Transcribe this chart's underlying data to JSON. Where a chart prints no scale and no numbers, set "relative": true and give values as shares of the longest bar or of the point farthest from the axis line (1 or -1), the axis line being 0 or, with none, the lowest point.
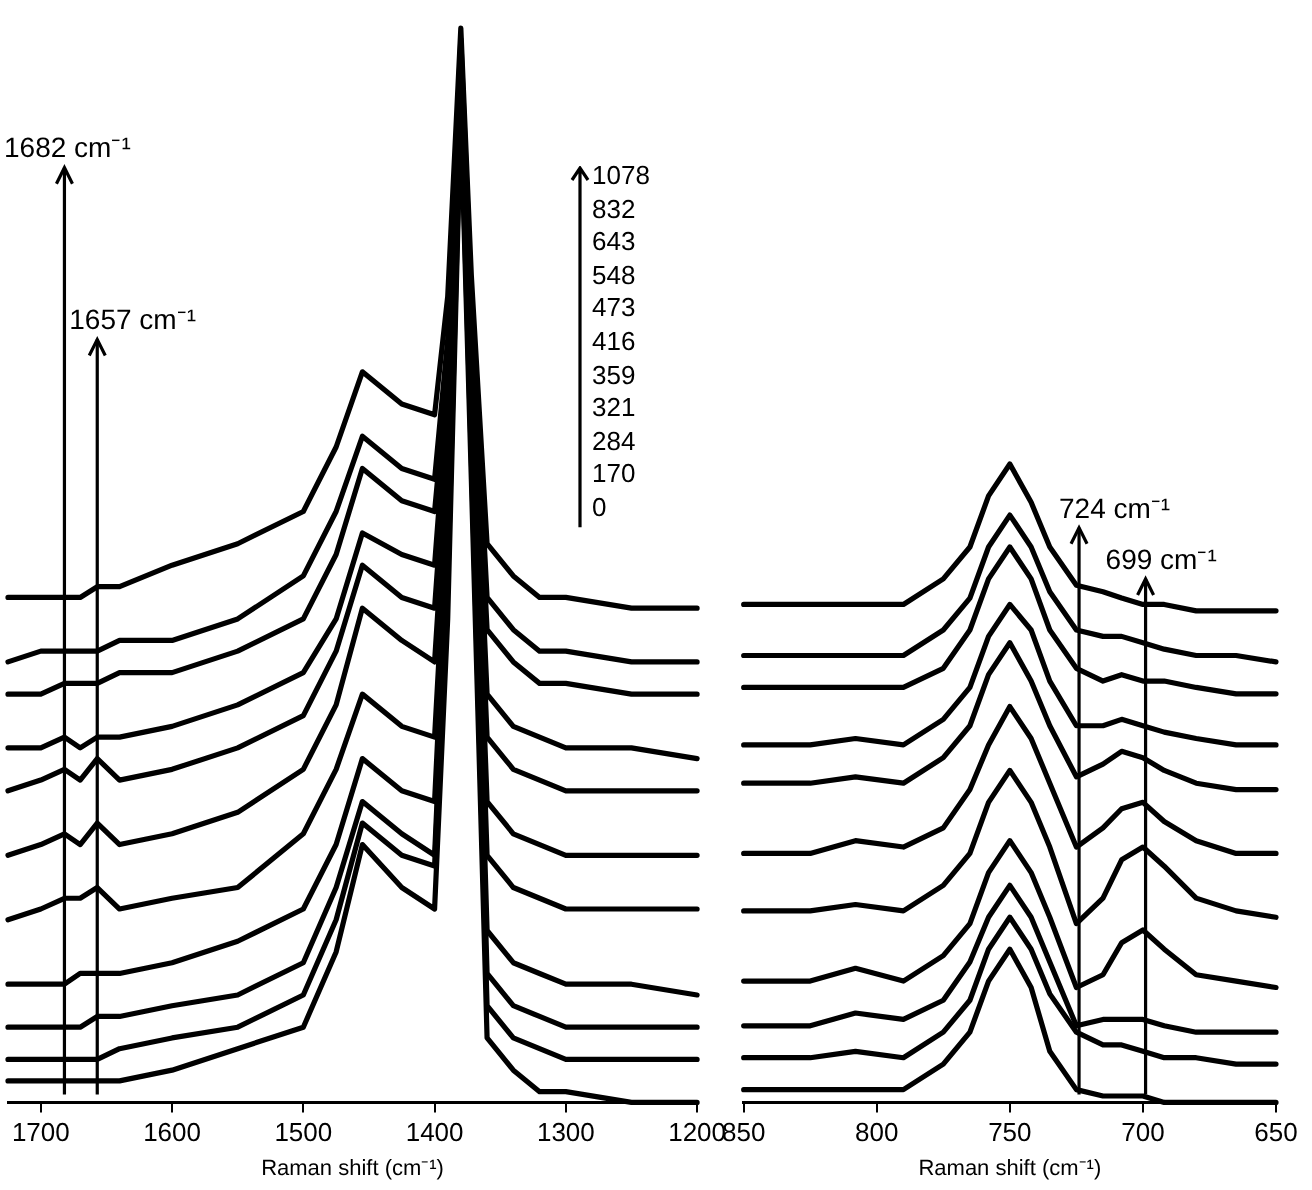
{
  "chart_data": [
    {
      "type": "line",
      "relative": true,
      "xlabel": "Raman shift (cm⁻¹)",
      "x": [
        1725,
        1700,
        1682,
        1670,
        1657,
        1640,
        1600,
        1550,
        1500,
        1475,
        1455,
        1425,
        1400,
        1390,
        1380,
        1372,
        1360,
        1340,
        1320,
        1300,
        1250,
        1200
      ],
      "xlim": [
        1725,
        1200
      ],
      "xticks": [
        1700,
        1600,
        1500,
        1400,
        1300,
        1200
      ],
      "ref_lines": [
        {
          "axis": "x",
          "value": 1682,
          "label": "1682 cm⁻¹"
        },
        {
          "axis": "x",
          "value": 1657,
          "label": "1657 cm⁻¹"
        }
      ],
      "annotations": [
        "1078",
        "832",
        "643",
        "548",
        "473",
        "416",
        "359",
        "321",
        "284",
        "170",
        "0"
      ],
      "series": [
        {
          "color": "#000000",
          "values": [
            0.47,
            0.47,
            0.47,
            0.47,
            0.48,
            0.48,
            0.5,
            0.52,
            0.55,
            0.61,
            0.68,
            0.65,
            0.64,
            0.75,
            1.0,
            0.77,
            0.52,
            0.49,
            0.47,
            0.47,
            0.46,
            0.46
          ]
        },
        {
          "color": "#000000",
          "values": [
            0.41,
            0.42,
            0.42,
            0.42,
            0.42,
            0.43,
            0.43,
            0.45,
            0.49,
            0.55,
            0.62,
            0.59,
            0.58,
            0.71,
            0.99,
            0.75,
            0.47,
            0.44,
            0.42,
            0.42,
            0.41,
            0.41
          ]
        },
        {
          "color": "#000000",
          "values": [
            0.38,
            0.38,
            0.39,
            0.39,
            0.39,
            0.4,
            0.4,
            0.42,
            0.45,
            0.51,
            0.59,
            0.56,
            0.55,
            0.68,
            0.98,
            0.73,
            0.44,
            0.41,
            0.39,
            0.39,
            0.38,
            0.38
          ]
        },
        {
          "color": "#000000",
          "values": [
            0.33,
            0.33,
            0.34,
            0.33,
            0.34,
            0.34,
            0.35,
            0.37,
            0.4,
            0.45,
            0.53,
            0.51,
            0.5,
            0.66,
            0.98,
            0.71,
            0.38,
            0.35,
            0.34,
            0.33,
            0.33,
            0.32
          ]
        },
        {
          "color": "#000000",
          "values": [
            0.29,
            0.3,
            0.31,
            0.3,
            0.32,
            0.3,
            0.31,
            0.33,
            0.36,
            0.42,
            0.5,
            0.47,
            0.46,
            0.63,
            0.97,
            0.69,
            0.34,
            0.31,
            0.3,
            0.29,
            0.29,
            0.29
          ]
        },
        {
          "color": "#000000",
          "values": [
            0.23,
            0.24,
            0.25,
            0.24,
            0.26,
            0.24,
            0.25,
            0.27,
            0.31,
            0.37,
            0.46,
            0.43,
            0.41,
            0.6,
            0.96,
            0.67,
            0.28,
            0.25,
            0.24,
            0.23,
            0.23,
            0.23
          ]
        },
        {
          "color": "#000000",
          "values": [
            0.17,
            0.18,
            0.19,
            0.19,
            0.2,
            0.18,
            0.19,
            0.2,
            0.25,
            0.31,
            0.38,
            0.35,
            0.34,
            0.56,
            0.95,
            0.66,
            0.23,
            0.2,
            0.19,
            0.18,
            0.18,
            0.18
          ]
        },
        {
          "color": "#000000",
          "values": [
            0.11,
            0.11,
            0.11,
            0.12,
            0.12,
            0.12,
            0.13,
            0.15,
            0.18,
            0.24,
            0.32,
            0.29,
            0.28,
            0.53,
            0.95,
            0.64,
            0.16,
            0.13,
            0.12,
            0.11,
            0.11,
            0.1
          ]
        },
        {
          "color": "#000000",
          "values": [
            0.07,
            0.07,
            0.07,
            0.07,
            0.08,
            0.08,
            0.09,
            0.1,
            0.13,
            0.2,
            0.28,
            0.25,
            0.23,
            0.5,
            0.94,
            0.62,
            0.12,
            0.09,
            0.08,
            0.07,
            0.07,
            0.07
          ]
        },
        {
          "color": "#000000",
          "values": [
            0.04,
            0.04,
            0.04,
            0.04,
            0.04,
            0.05,
            0.06,
            0.07,
            0.1,
            0.17,
            0.26,
            0.23,
            0.22,
            0.48,
            0.93,
            0.6,
            0.09,
            0.06,
            0.05,
            0.04,
            0.04,
            0.04
          ]
        },
        {
          "color": "#000000",
          "values": [
            0.02,
            0.02,
            0.02,
            0.02,
            0.02,
            0.02,
            0.03,
            0.05,
            0.07,
            0.14,
            0.24,
            0.2,
            0.18,
            0.45,
            0.92,
            0.58,
            0.06,
            0.03,
            0.01,
            0.01,
            0.0,
            0.0
          ]
        }
      ]
    },
    {
      "type": "line",
      "relative": true,
      "xlabel": "Raman shift (cm⁻¹)",
      "x": [
        850,
        825,
        808,
        790,
        775,
        765,
        758,
        750,
        742,
        735,
        725,
        715,
        708,
        700,
        692,
        680,
        665,
        650
      ],
      "xlim": [
        850,
        650
      ],
      "xticks": [
        850,
        800,
        750,
        700,
        650
      ],
      "ref_lines": [
        {
          "axis": "x",
          "value": 724,
          "label": "724 cm⁻¹"
        },
        {
          "axis": "x",
          "value": 699,
          "label": "699 cm⁻¹"
        }
      ],
      "series": [
        {
          "color": "#000000",
          "values": [
            0.78,
            0.78,
            0.78,
            0.78,
            0.82,
            0.87,
            0.95,
            1.0,
            0.94,
            0.87,
            0.81,
            0.8,
            0.79,
            0.78,
            0.78,
            0.77,
            0.77,
            0.77
          ]
        },
        {
          "color": "#000000",
          "values": [
            0.7,
            0.7,
            0.7,
            0.7,
            0.74,
            0.79,
            0.87,
            0.92,
            0.87,
            0.8,
            0.74,
            0.73,
            0.73,
            0.72,
            0.71,
            0.7,
            0.7,
            0.69
          ]
        },
        {
          "color": "#000000",
          "values": [
            0.65,
            0.65,
            0.65,
            0.65,
            0.68,
            0.74,
            0.82,
            0.87,
            0.82,
            0.74,
            0.68,
            0.66,
            0.67,
            0.66,
            0.66,
            0.65,
            0.64,
            0.64
          ]
        },
        {
          "color": "#000000",
          "values": [
            0.56,
            0.56,
            0.57,
            0.56,
            0.6,
            0.65,
            0.73,
            0.78,
            0.74,
            0.66,
            0.59,
            0.59,
            0.6,
            0.59,
            0.58,
            0.57,
            0.56,
            0.56
          ]
        },
        {
          "color": "#000000",
          "values": [
            0.5,
            0.5,
            0.51,
            0.5,
            0.54,
            0.59,
            0.67,
            0.72,
            0.66,
            0.59,
            0.51,
            0.53,
            0.55,
            0.54,
            0.52,
            0.5,
            0.49,
            0.49
          ]
        },
        {
          "color": "#000000",
          "values": [
            0.39,
            0.39,
            0.41,
            0.4,
            0.43,
            0.49,
            0.56,
            0.62,
            0.57,
            0.5,
            0.4,
            0.43,
            0.46,
            0.47,
            0.44,
            0.41,
            0.39,
            0.39
          ]
        },
        {
          "color": "#000000",
          "values": [
            0.3,
            0.3,
            0.31,
            0.3,
            0.34,
            0.39,
            0.47,
            0.52,
            0.47,
            0.4,
            0.28,
            0.32,
            0.38,
            0.4,
            0.37,
            0.32,
            0.3,
            0.29
          ]
        },
        {
          "color": "#000000",
          "values": [
            0.19,
            0.19,
            0.21,
            0.19,
            0.23,
            0.28,
            0.36,
            0.41,
            0.36,
            0.29,
            0.18,
            0.2,
            0.25,
            0.27,
            0.24,
            0.2,
            0.19,
            0.18
          ]
        },
        {
          "color": "#000000",
          "values": [
            0.12,
            0.12,
            0.14,
            0.13,
            0.16,
            0.22,
            0.29,
            0.34,
            0.29,
            0.22,
            0.12,
            0.13,
            0.13,
            0.13,
            0.12,
            0.11,
            0.11,
            0.11
          ]
        },
        {
          "color": "#000000",
          "values": [
            0.07,
            0.07,
            0.08,
            0.07,
            0.11,
            0.16,
            0.24,
            0.29,
            0.24,
            0.17,
            0.11,
            0.09,
            0.09,
            0.08,
            0.07,
            0.07,
            0.06,
            0.06
          ]
        },
        {
          "color": "#000000",
          "values": [
            0.02,
            0.02,
            0.02,
            0.02,
            0.06,
            0.11,
            0.19,
            0.24,
            0.18,
            0.08,
            0.02,
            0.01,
            0.01,
            0.01,
            0.0,
            0.0,
            0.0,
            0.0
          ]
        }
      ]
    }
  ]
}
